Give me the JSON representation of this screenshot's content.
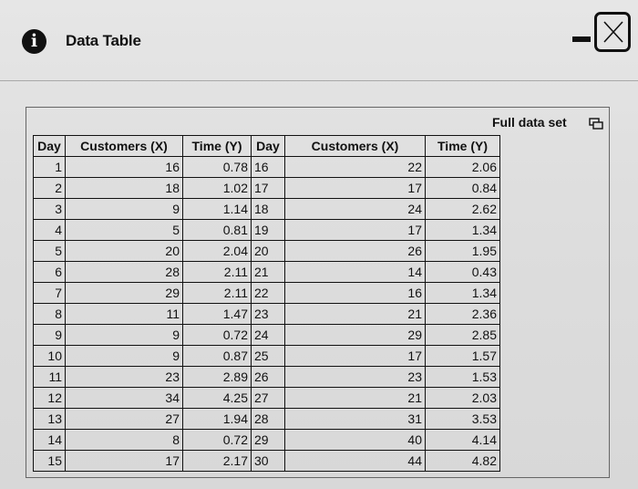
{
  "window": {
    "title": "Data Table",
    "info_icon_glyph": "i"
  },
  "panel": {
    "full_data_label": "Full data set"
  },
  "table": {
    "headers": [
      "Day",
      "Customers (X)",
      "Time (Y)",
      "Day",
      "Customers (X)",
      "Time (Y)"
    ],
    "left_rows": [
      [
        "1",
        "16",
        "0.78"
      ],
      [
        "2",
        "18",
        "1.02"
      ],
      [
        "3",
        "9",
        "1.14"
      ],
      [
        "4",
        "5",
        "0.81"
      ],
      [
        "5",
        "20",
        "2.04"
      ],
      [
        "6",
        "28",
        "2.11"
      ],
      [
        "7",
        "29",
        "2.11"
      ],
      [
        "8",
        "11",
        "1.47"
      ],
      [
        "9",
        "9",
        "0.72"
      ],
      [
        "10",
        "9",
        "0.87"
      ],
      [
        "11",
        "23",
        "2.89"
      ],
      [
        "12",
        "34",
        "4.25"
      ],
      [
        "13",
        "27",
        "1.94"
      ],
      [
        "14",
        "8",
        "0.72"
      ],
      [
        "15",
        "17",
        "2.17"
      ]
    ],
    "right_rows": [
      [
        "16",
        "22",
        "2.06"
      ],
      [
        "17",
        "17",
        "0.84"
      ],
      [
        "18",
        "24",
        "2.62"
      ],
      [
        "19",
        "17",
        "1.34"
      ],
      [
        "20",
        "26",
        "1.95"
      ],
      [
        "21",
        "14",
        "0.43"
      ],
      [
        "22",
        "16",
        "1.34"
      ],
      [
        "23",
        "21",
        "2.36"
      ],
      [
        "24",
        "29",
        "2.85"
      ],
      [
        "25",
        "17",
        "1.57"
      ],
      [
        "26",
        "23",
        "1.53"
      ],
      [
        "27",
        "21",
        "2.03"
      ],
      [
        "28",
        "31",
        "3.53"
      ],
      [
        "29",
        "40",
        "4.14"
      ],
      [
        "30",
        "44",
        "4.82"
      ]
    ]
  }
}
